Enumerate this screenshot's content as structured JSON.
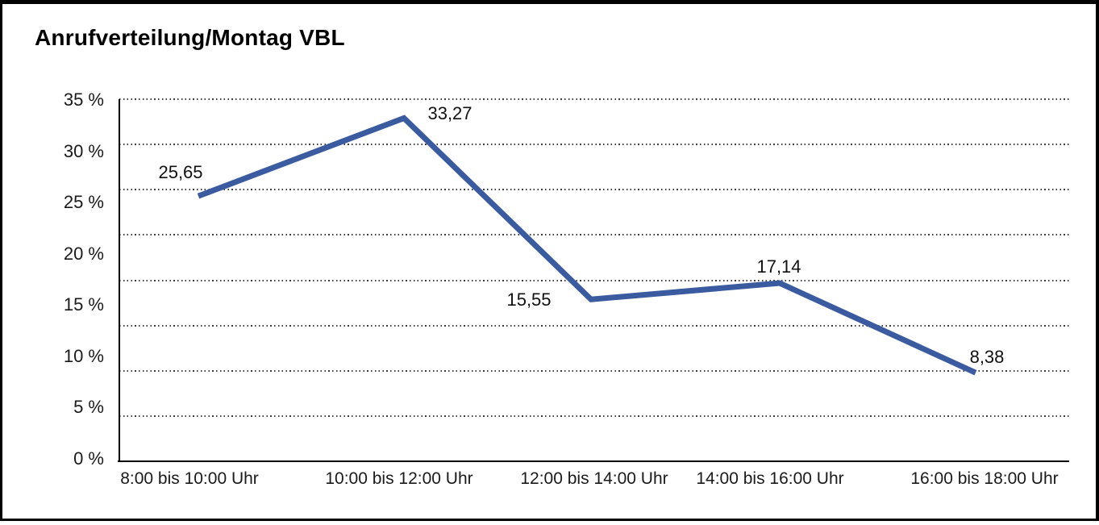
{
  "title": "Anrufverteilung/Montag VBL",
  "chart_data": {
    "type": "line",
    "title": "Anrufverteilung/Montag VBL",
    "categories": [
      "8:00 bis 10:00 Uhr",
      "10:00 bis 12:00 Uhr",
      "12:00 bis 14:00 Uhr",
      "14:00 bis 16:00 Uhr",
      "16:00 bis 18:00 Uhr"
    ],
    "values": [
      25.65,
      33.27,
      15.55,
      17.14,
      8.38
    ],
    "value_labels": [
      "25,65",
      "33,27",
      "15,55",
      "17,14",
      "8,38"
    ],
    "yticks": [
      "35 %",
      "30 %",
      "25 %",
      "20 %",
      "15 %",
      "10 %",
      "5 %",
      "0 %"
    ],
    "ylim": [
      0,
      35
    ],
    "xlabel": "",
    "ylabel": "",
    "grid": "horizontal-dotted",
    "legend": "none",
    "line_color": "#3B5BA1",
    "axis_color": "#000000"
  }
}
